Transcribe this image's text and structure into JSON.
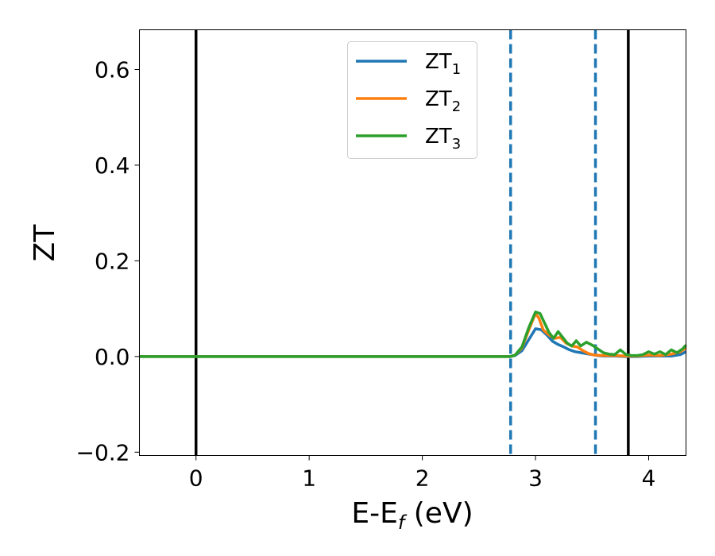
{
  "chart_data": {
    "type": "line",
    "xlabel_main": "E-E",
    "xlabel_sub": "f",
    "xlabel_unit": " (eV)",
    "ylabel": "ZT",
    "xlim": [
      -0.5,
      4.33
    ],
    "ylim": [
      -0.207,
      0.683
    ],
    "xticks": [
      0,
      1,
      2,
      3,
      4
    ],
    "xtick_labels": [
      "0",
      "1",
      "2",
      "3",
      "4"
    ],
    "yticks": [
      -0.2,
      0.0,
      0.2,
      0.4,
      0.6
    ],
    "ytick_labels": [
      "−0.2",
      "0.0",
      "0.2",
      "0.4",
      "0.6"
    ],
    "grid": false,
    "legend_position": "top-center",
    "vertical_lines": [
      {
        "x": 0.0,
        "style": "solid",
        "color": "#000000"
      },
      {
        "x": 3.82,
        "style": "solid",
        "color": "#000000"
      },
      {
        "x": 2.78,
        "style": "dashed",
        "color": "#1f77b4"
      },
      {
        "x": 3.53,
        "style": "dashed",
        "color": "#1f77b4"
      }
    ],
    "series": [
      {
        "name_main": "ZT",
        "name_sub": "1",
        "color": "#1f77b4",
        "x": [
          -0.5,
          2.78,
          2.82,
          2.88,
          2.94,
          3.0,
          3.05,
          3.1,
          3.15,
          3.2,
          3.25,
          3.3,
          3.35,
          3.4,
          3.45,
          3.5,
          3.55,
          3.6,
          3.7,
          3.8,
          3.9,
          4.0,
          4.1,
          4.2,
          4.28,
          4.33
        ],
        "values": [
          0,
          0,
          0.002,
          0.012,
          0.035,
          0.058,
          0.056,
          0.045,
          0.032,
          0.025,
          0.02,
          0.014,
          0.01,
          0.008,
          0.006,
          0.004,
          0.002,
          0.001,
          0.001,
          0.0,
          0.0,
          0.001,
          0.001,
          0.001,
          0.004,
          0.01
        ]
      },
      {
        "name_main": "ZT",
        "name_sub": "2",
        "color": "#ff7f0e",
        "x": [
          -0.5,
          2.78,
          2.82,
          2.88,
          2.94,
          3.0,
          3.03,
          3.07,
          3.12,
          3.17,
          3.22,
          3.27,
          3.32,
          3.37,
          3.42,
          3.47,
          3.52,
          3.6,
          3.7,
          3.8,
          3.9,
          4.0,
          4.1,
          4.2,
          4.28,
          4.33
        ],
        "values": [
          0,
          0,
          0.003,
          0.018,
          0.055,
          0.09,
          0.08,
          0.055,
          0.045,
          0.038,
          0.04,
          0.028,
          0.022,
          0.02,
          0.012,
          0.006,
          0.003,
          0.002,
          0.002,
          0.001,
          0.001,
          0.003,
          0.002,
          0.005,
          0.01,
          0.018
        ]
      },
      {
        "name_main": "ZT",
        "name_sub": "3",
        "color": "#2ca02c",
        "x": [
          -0.5,
          2.78,
          2.82,
          2.88,
          2.94,
          3.0,
          3.04,
          3.08,
          3.12,
          3.16,
          3.2,
          3.24,
          3.28,
          3.32,
          3.36,
          3.4,
          3.45,
          3.5,
          3.55,
          3.6,
          3.65,
          3.7,
          3.75,
          3.8,
          3.85,
          3.9,
          3.95,
          4.0,
          4.05,
          4.1,
          4.15,
          4.2,
          4.25,
          4.3,
          4.33
        ],
        "values": [
          0,
          0,
          0.003,
          0.02,
          0.06,
          0.093,
          0.09,
          0.07,
          0.05,
          0.038,
          0.052,
          0.04,
          0.028,
          0.022,
          0.033,
          0.022,
          0.03,
          0.024,
          0.016,
          0.008,
          0.005,
          0.004,
          0.014,
          0.004,
          0.002,
          0.002,
          0.004,
          0.01,
          0.005,
          0.01,
          0.004,
          0.014,
          0.008,
          0.016,
          0.024
        ]
      }
    ]
  }
}
